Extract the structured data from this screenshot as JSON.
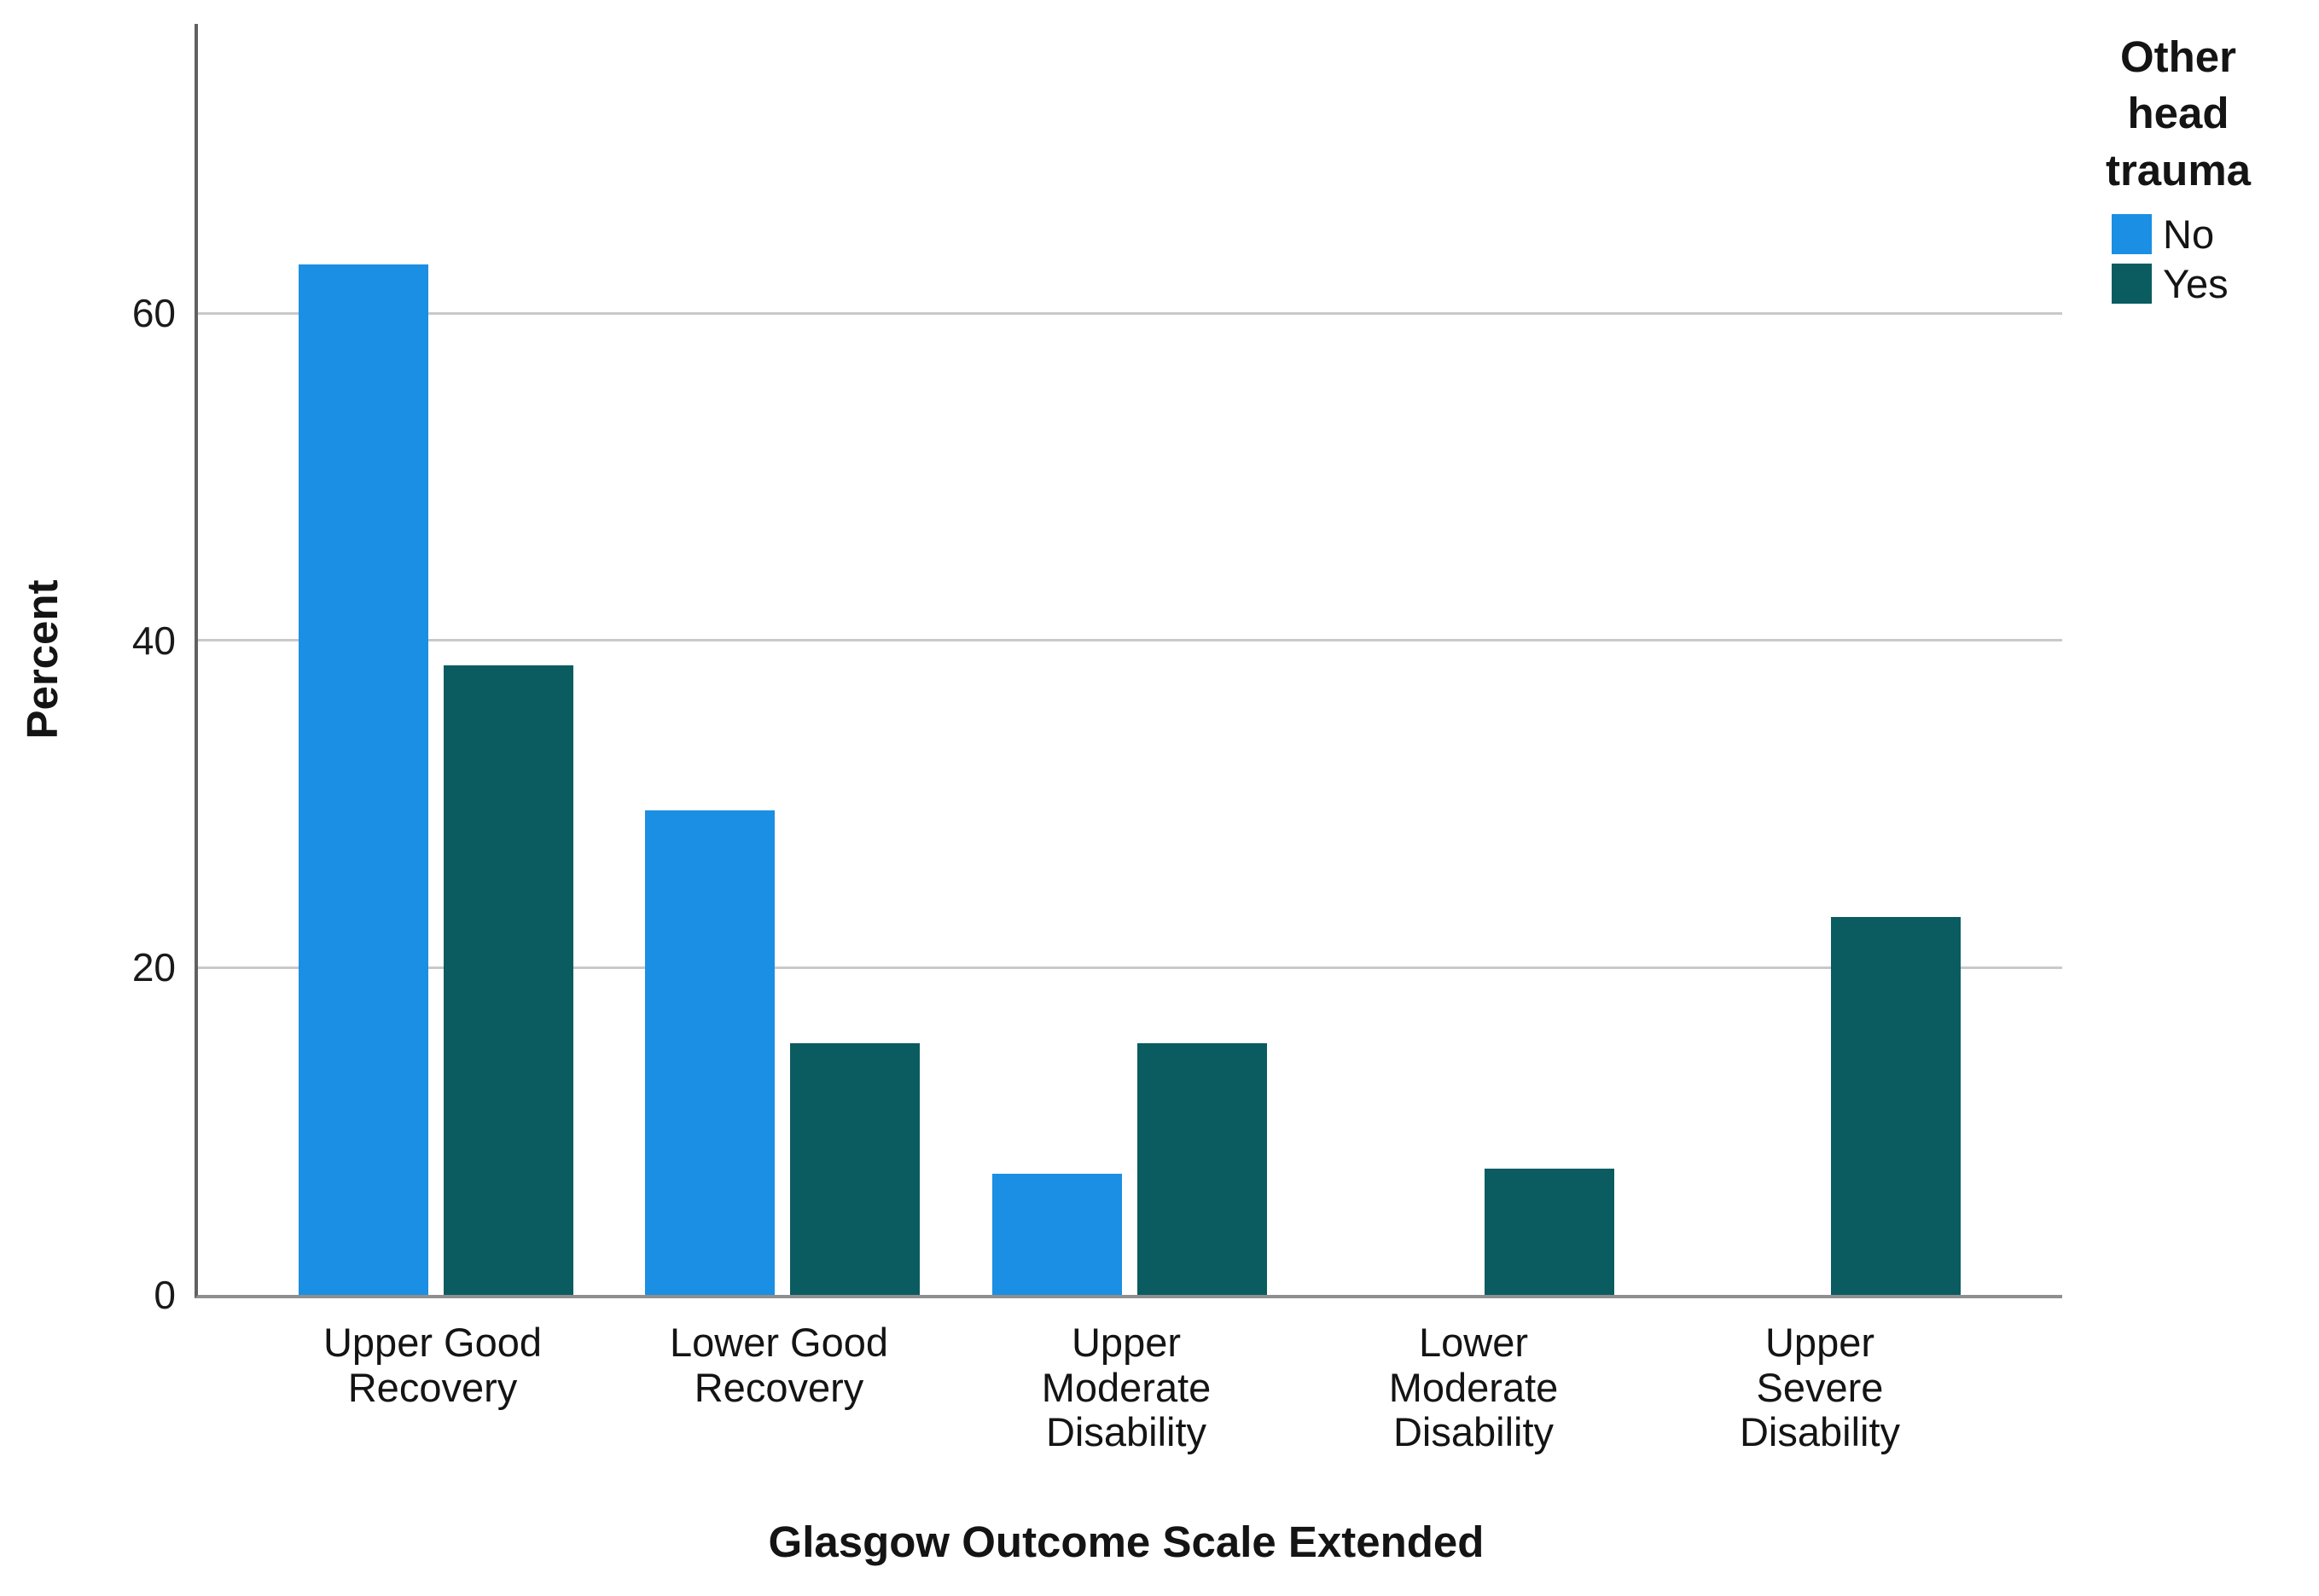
{
  "chart_data": {
    "type": "bar",
    "title": "",
    "xlabel": "Glasgow Outcome Scale Extended",
    "ylabel": "Percent",
    "categories": [
      "Upper Good Recovery",
      "Lower Good Recovery",
      "Upper Moderate Disability",
      "Lower Moderate Disability",
      "Upper Severe Disability"
    ],
    "category_label_lines": [
      [
        "Upper Good",
        "Recovery"
      ],
      [
        "Lower Good",
        "Recovery"
      ],
      [
        "Upper",
        "Moderate",
        "Disability"
      ],
      [
        "Lower",
        "Moderate",
        "Disability"
      ],
      [
        "Upper",
        "Severe",
        "Disability"
      ]
    ],
    "series": [
      {
        "name": "No",
        "color": "#1b8fe3",
        "values": [
          63.0,
          29.6,
          7.4,
          0,
          0
        ]
      },
      {
        "name": "Yes",
        "color": "#0a5c61",
        "values": [
          38.5,
          15.4,
          15.4,
          7.7,
          23.1
        ]
      }
    ],
    "ylim": [
      0,
      77.7
    ],
    "yticks": [
      0,
      20,
      40,
      60
    ],
    "grid": true,
    "grid_color": "#c9c9c9",
    "legend_title": "Other\nhead\ntrauma",
    "legend_position": "top-right"
  },
  "axes": {
    "y_title": "Percent",
    "x_title": "Glasgow Outcome Scale Extended"
  },
  "legend": {
    "title": "Other\nhead\ntrauma",
    "items": [
      {
        "label": "No",
        "color": "#1b8fe3"
      },
      {
        "label": "Yes",
        "color": "#0a5c61"
      }
    ]
  }
}
